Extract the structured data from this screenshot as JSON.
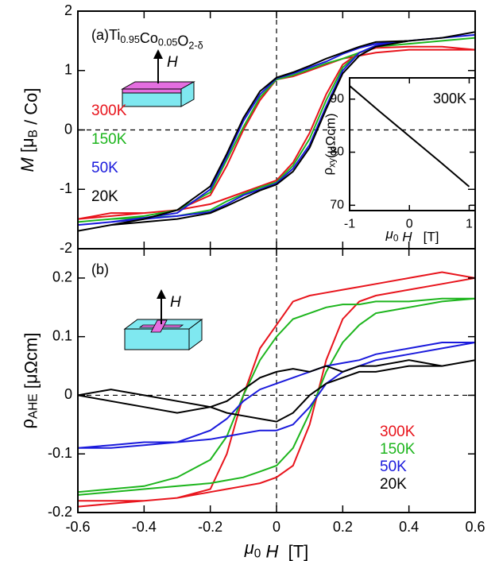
{
  "chart_data": [
    {
      "type": "line",
      "title_parts": [
        "(a)Ti",
        {
          "sub": "0.95"
        },
        "Co",
        {
          "sub": "0.05"
        },
        "O",
        {
          "sub": "2-δ"
        }
      ],
      "ylabel_parts": [
        {
          "italic": "M"
        },
        " [μ",
        {
          "sub": "B"
        },
        " / Co]"
      ],
      "field_label": "H",
      "xlim": [
        -0.6,
        0.6
      ],
      "xticks": [
        -0.6,
        -0.4,
        -0.2,
        0,
        0.2,
        0.4,
        0.6
      ],
      "ylim": [
        -2,
        2
      ],
      "yticks": [
        -2,
        -1,
        0,
        1,
        2
      ],
      "zero_lines": true,
      "legend": "left",
      "x": [
        -0.6,
        -0.5,
        -0.4,
        -0.3,
        -0.2,
        -0.15,
        -0.1,
        -0.05,
        0,
        0.05,
        0.1,
        0.15,
        0.2,
        0.25,
        0.3,
        0.4,
        0.5,
        0.6,
        0.5,
        0.4,
        0.3,
        0.25,
        0.2,
        0.15,
        0.1,
        0.05,
        0,
        -0.05,
        -0.1,
        -0.15,
        -0.2,
        -0.3,
        -0.4,
        -0.5,
        -0.6
      ],
      "series": [
        {
          "name": "300K",
          "color": "#e8141c",
          "values": [
            -1.5,
            -1.45,
            -1.4,
            -1.35,
            -1.25,
            -1.15,
            -1.05,
            -0.95,
            -0.85,
            -0.55,
            -0.05,
            0.6,
            1.1,
            1.3,
            1.38,
            1.4,
            1.4,
            1.35,
            1.35,
            1.35,
            1.3,
            1.25,
            1.2,
            1.1,
            1.0,
            0.9,
            0.85,
            0.5,
            0.0,
            -0.6,
            -1.1,
            -1.35,
            -1.4,
            -1.4,
            -1.5
          ]
        },
        {
          "name": "150K",
          "color": "#1db51d",
          "values": [
            -1.55,
            -1.5,
            -1.48,
            -1.45,
            -1.35,
            -1.2,
            -1.08,
            -0.97,
            -0.88,
            -0.6,
            -0.15,
            0.5,
            1.05,
            1.3,
            1.4,
            1.45,
            1.5,
            1.55,
            1.5,
            1.45,
            1.4,
            1.3,
            1.2,
            1.12,
            1.02,
            0.92,
            0.85,
            0.55,
            0.05,
            -0.5,
            -1.05,
            -1.35,
            -1.45,
            -1.5,
            -1.55
          ]
        },
        {
          "name": "50K",
          "color": "#1a1adc",
          "values": [
            -1.6,
            -1.55,
            -1.5,
            -1.45,
            -1.38,
            -1.25,
            -1.1,
            -1.0,
            -0.9,
            -0.65,
            -0.25,
            0.4,
            1.0,
            1.3,
            1.42,
            1.5,
            1.55,
            1.6,
            1.55,
            1.5,
            1.45,
            1.38,
            1.28,
            1.15,
            1.05,
            0.95,
            0.87,
            0.6,
            0.15,
            -0.45,
            -1.0,
            -1.4,
            -1.48,
            -1.55,
            -1.6
          ]
        },
        {
          "name": "20K",
          "color": "#000000",
          "values": [
            -1.7,
            -1.6,
            -1.55,
            -1.5,
            -1.4,
            -1.28,
            -1.15,
            -1.02,
            -0.92,
            -0.7,
            -0.3,
            0.35,
            0.95,
            1.25,
            1.4,
            1.5,
            1.55,
            1.65,
            1.55,
            1.5,
            1.48,
            1.4,
            1.3,
            1.2,
            1.08,
            0.97,
            0.88,
            0.65,
            0.2,
            -0.4,
            -0.95,
            -1.35,
            -1.5,
            -1.6,
            -1.7
          ]
        }
      ]
    },
    {
      "type": "line",
      "annotation": "300K",
      "xlabel_parts": [
        {
          "italic": "μ"
        },
        {
          "sub": "0"
        },
        {
          "italic": " H"
        },
        "   [T]"
      ],
      "ylabel_parts": [
        "ρ",
        {
          "sub": "xy"
        },
        "(μΩcm)"
      ],
      "xlim": [
        -1,
        1.1
      ],
      "xticks": [
        -1,
        0,
        1
      ],
      "ylim": [
        69,
        94
      ],
      "yticks": [
        70,
        80,
        90
      ],
      "x": [
        -1,
        -0.5,
        0,
        0.5,
        1
      ],
      "series": [
        {
          "color": "#000000",
          "values": [
            92.5,
            87.7,
            83,
            78.3,
            73.5
          ]
        }
      ]
    },
    {
      "type": "line",
      "title_parts": [
        "(b)"
      ],
      "ylabel_parts": [
        "ρ",
        {
          "sub": "AHE"
        },
        " [μΩcm]"
      ],
      "xlabel_parts": [
        {
          "italic": "μ"
        },
        {
          "sub": "0"
        },
        {
          "italic": " H"
        },
        "  [T]"
      ],
      "field_label": "H",
      "xlim": [
        -0.6,
        0.6
      ],
      "xticks": [
        -0.6,
        -0.4,
        -0.2,
        0,
        0.2,
        0.4,
        0.6
      ],
      "ylim": [
        -0.2,
        0.25
      ],
      "yticks": [
        -0.2,
        -0.1,
        0,
        0.1,
        0.2
      ],
      "zero_lines": true,
      "legend": "lower right",
      "x": [
        -0.6,
        -0.5,
        -0.4,
        -0.3,
        -0.2,
        -0.15,
        -0.1,
        -0.05,
        0,
        0.05,
        0.1,
        0.15,
        0.2,
        0.25,
        0.3,
        0.4,
        0.5,
        0.6,
        0.5,
        0.4,
        0.3,
        0.25,
        0.2,
        0.15,
        0.1,
        0.05,
        0,
        -0.05,
        -0.1,
        -0.15,
        -0.2,
        -0.3,
        -0.4,
        -0.5,
        -0.6
      ],
      "series": [
        {
          "name": "300K",
          "color": "#e8141c",
          "values": [
            -0.19,
            -0.185,
            -0.18,
            -0.175,
            -0.165,
            -0.16,
            -0.155,
            -0.15,
            -0.14,
            -0.12,
            -0.05,
            0.06,
            0.13,
            0.16,
            0.17,
            0.18,
            0.19,
            0.2,
            0.21,
            0.2,
            0.19,
            0.185,
            0.18,
            0.175,
            0.17,
            0.16,
            0.12,
            0.08,
            0.0,
            -0.1,
            -0.16,
            -0.175,
            -0.18,
            -0.18,
            -0.18
          ]
        },
        {
          "name": "150K",
          "color": "#1db51d",
          "values": [
            -0.17,
            -0.165,
            -0.16,
            -0.155,
            -0.15,
            -0.145,
            -0.14,
            -0.13,
            -0.12,
            -0.09,
            -0.03,
            0.04,
            0.09,
            0.12,
            0.14,
            0.15,
            0.16,
            0.165,
            0.165,
            0.16,
            0.16,
            0.155,
            0.155,
            0.15,
            0.14,
            0.13,
            0.1,
            0.06,
            0.0,
            -0.07,
            -0.11,
            -0.14,
            -0.155,
            -0.16,
            -0.165
          ]
        },
        {
          "name": "50K",
          "color": "#1a1adc",
          "values": [
            -0.09,
            -0.085,
            -0.08,
            -0.08,
            -0.075,
            -0.07,
            -0.065,
            -0.06,
            -0.06,
            -0.05,
            -0.02,
            0.02,
            0.04,
            0.05,
            0.06,
            0.07,
            0.08,
            0.09,
            0.09,
            0.08,
            0.07,
            0.06,
            0.055,
            0.05,
            0.04,
            0.03,
            0.02,
            0.01,
            -0.01,
            -0.04,
            -0.06,
            -0.08,
            -0.085,
            -0.09,
            -0.09
          ]
        },
        {
          "name": "20K",
          "color": "#000000",
          "values": [
            0,
            -0.01,
            -0.02,
            -0.03,
            -0.02,
            -0.03,
            -0.035,
            -0.04,
            -0.045,
            -0.03,
            0.0,
            0.02,
            0.03,
            0.04,
            0.04,
            0.05,
            0.05,
            0.06,
            0.05,
            0.06,
            0.05,
            0.05,
            0.04,
            0.05,
            0.04,
            0.045,
            0.04,
            0.03,
            0.01,
            -0.01,
            -0.02,
            -0.01,
            0.0,
            0.01,
            0.0
          ]
        }
      ]
    }
  ]
}
